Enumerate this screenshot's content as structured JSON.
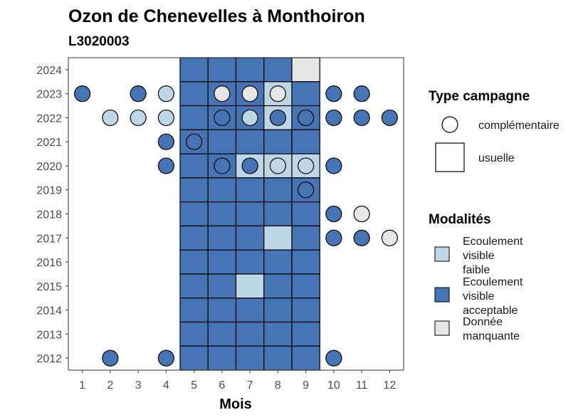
{
  "chart_data": {
    "type": "heatmap",
    "title": "Ozon de Chenevelles à Monthoiron",
    "subtitle": "L3020003",
    "xlabel": "Mois",
    "ylabel": "",
    "x_ticks": [
      1,
      2,
      3,
      4,
      5,
      6,
      7,
      8,
      9,
      10,
      11,
      12
    ],
    "y_ticks": [
      2012,
      2013,
      2014,
      2015,
      2016,
      2017,
      2018,
      2019,
      2020,
      2021,
      2022,
      2023,
      2024
    ],
    "xlim": [
      0.5,
      12.5
    ],
    "ylim": [
      2011.5,
      2024.5
    ],
    "colors": {
      "faible": "#bdd7e7",
      "acceptable": "#4575b4",
      "manquante": "#e6e6e6"
    },
    "legend_type": {
      "title": "Type campagne",
      "items": [
        {
          "label": "complémentaire",
          "shape": "circle"
        },
        {
          "label": "usuelle",
          "shape": "square"
        }
      ]
    },
    "legend_modalites": {
      "title": "Modalités",
      "items": [
        {
          "key": "faible",
          "label": "Ecoulement visible faible"
        },
        {
          "key": "acceptable",
          "label": "Ecoulement visible acceptable"
        },
        {
          "key": "manquante",
          "label": "Donnée manquante"
        }
      ]
    },
    "usuelle": [
      {
        "year": 2024,
        "month": 5,
        "v": "acceptable"
      },
      {
        "year": 2024,
        "month": 6,
        "v": "acceptable"
      },
      {
        "year": 2024,
        "month": 7,
        "v": "acceptable"
      },
      {
        "year": 2024,
        "month": 8,
        "v": "acceptable"
      },
      {
        "year": 2024,
        "month": 9,
        "v": "manquante"
      },
      {
        "year": 2023,
        "month": 5,
        "v": "acceptable"
      },
      {
        "year": 2023,
        "month": 6,
        "v": "acceptable"
      },
      {
        "year": 2023,
        "month": 7,
        "v": "acceptable"
      },
      {
        "year": 2023,
        "month": 8,
        "v": "faible"
      },
      {
        "year": 2023,
        "month": 9,
        "v": "acceptable"
      },
      {
        "year": 2022,
        "month": 5,
        "v": "acceptable"
      },
      {
        "year": 2022,
        "month": 6,
        "v": "acceptable"
      },
      {
        "year": 2022,
        "month": 7,
        "v": "acceptable"
      },
      {
        "year": 2022,
        "month": 8,
        "v": "faible"
      },
      {
        "year": 2022,
        "month": 9,
        "v": "acceptable"
      },
      {
        "year": 2021,
        "month": 5,
        "v": "acceptable"
      },
      {
        "year": 2021,
        "month": 6,
        "v": "acceptable"
      },
      {
        "year": 2021,
        "month": 7,
        "v": "acceptable"
      },
      {
        "year": 2021,
        "month": 8,
        "v": "acceptable"
      },
      {
        "year": 2021,
        "month": 9,
        "v": "acceptable"
      },
      {
        "year": 2020,
        "month": 5,
        "v": "acceptable"
      },
      {
        "year": 2020,
        "month": 6,
        "v": "acceptable"
      },
      {
        "year": 2020,
        "month": 7,
        "v": "faible"
      },
      {
        "year": 2020,
        "month": 8,
        "v": "faible"
      },
      {
        "year": 2020,
        "month": 9,
        "v": "faible"
      },
      {
        "year": 2019,
        "month": 5,
        "v": "acceptable"
      },
      {
        "year": 2019,
        "month": 6,
        "v": "acceptable"
      },
      {
        "year": 2019,
        "month": 7,
        "v": "acceptable"
      },
      {
        "year": 2019,
        "month": 8,
        "v": "acceptable"
      },
      {
        "year": 2019,
        "month": 9,
        "v": "acceptable"
      },
      {
        "year": 2018,
        "month": 5,
        "v": "acceptable"
      },
      {
        "year": 2018,
        "month": 6,
        "v": "acceptable"
      },
      {
        "year": 2018,
        "month": 7,
        "v": "acceptable"
      },
      {
        "year": 2018,
        "month": 8,
        "v": "acceptable"
      },
      {
        "year": 2018,
        "month": 9,
        "v": "acceptable"
      },
      {
        "year": 2017,
        "month": 5,
        "v": "acceptable"
      },
      {
        "year": 2017,
        "month": 6,
        "v": "acceptable"
      },
      {
        "year": 2017,
        "month": 7,
        "v": "acceptable"
      },
      {
        "year": 2017,
        "month": 8,
        "v": "faible"
      },
      {
        "year": 2017,
        "month": 9,
        "v": "acceptable"
      },
      {
        "year": 2016,
        "month": 5,
        "v": "acceptable"
      },
      {
        "year": 2016,
        "month": 6,
        "v": "acceptable"
      },
      {
        "year": 2016,
        "month": 7,
        "v": "acceptable"
      },
      {
        "year": 2016,
        "month": 8,
        "v": "acceptable"
      },
      {
        "year": 2016,
        "month": 9,
        "v": "acceptable"
      },
      {
        "year": 2015,
        "month": 5,
        "v": "acceptable"
      },
      {
        "year": 2015,
        "month": 6,
        "v": "acceptable"
      },
      {
        "year": 2015,
        "month": 7,
        "v": "faible"
      },
      {
        "year": 2015,
        "month": 8,
        "v": "acceptable"
      },
      {
        "year": 2015,
        "month": 9,
        "v": "acceptable"
      },
      {
        "year": 2014,
        "month": 5,
        "v": "acceptable"
      },
      {
        "year": 2014,
        "month": 6,
        "v": "acceptable"
      },
      {
        "year": 2014,
        "month": 7,
        "v": "acceptable"
      },
      {
        "year": 2014,
        "month": 8,
        "v": "acceptable"
      },
      {
        "year": 2014,
        "month": 9,
        "v": "acceptable"
      },
      {
        "year": 2013,
        "month": 5,
        "v": "acceptable"
      },
      {
        "year": 2013,
        "month": 6,
        "v": "acceptable"
      },
      {
        "year": 2013,
        "month": 7,
        "v": "acceptable"
      },
      {
        "year": 2013,
        "month": 8,
        "v": "acceptable"
      },
      {
        "year": 2013,
        "month": 9,
        "v": "acceptable"
      },
      {
        "year": 2012,
        "month": 5,
        "v": "acceptable"
      },
      {
        "year": 2012,
        "month": 6,
        "v": "acceptable"
      },
      {
        "year": 2012,
        "month": 7,
        "v": "acceptable"
      },
      {
        "year": 2012,
        "month": 8,
        "v": "acceptable"
      },
      {
        "year": 2012,
        "month": 9,
        "v": "acceptable"
      }
    ],
    "complementaire": [
      {
        "year": 2023,
        "month": 1,
        "v": "acceptable"
      },
      {
        "year": 2023,
        "month": 3,
        "v": "acceptable"
      },
      {
        "year": 2023,
        "month": 4,
        "v": "faible"
      },
      {
        "year": 2023,
        "month": 6,
        "v": "manquante"
      },
      {
        "year": 2023,
        "month": 7,
        "v": "manquante"
      },
      {
        "year": 2023,
        "month": 8,
        "v": "manquante"
      },
      {
        "year": 2023,
        "month": 10,
        "v": "acceptable"
      },
      {
        "year": 2023,
        "month": 11,
        "v": "acceptable"
      },
      {
        "year": 2022,
        "month": 2,
        "v": "faible"
      },
      {
        "year": 2022,
        "month": 3,
        "v": "faible"
      },
      {
        "year": 2022,
        "month": 4,
        "v": "faible"
      },
      {
        "year": 2022,
        "month": 6,
        "v": "acceptable"
      },
      {
        "year": 2022,
        "month": 7,
        "v": "faible"
      },
      {
        "year": 2022,
        "month": 8,
        "v": "acceptable"
      },
      {
        "year": 2022,
        "month": 9,
        "v": "acceptable"
      },
      {
        "year": 2022,
        "month": 10,
        "v": "acceptable"
      },
      {
        "year": 2022,
        "month": 11,
        "v": "acceptable"
      },
      {
        "year": 2022,
        "month": 12,
        "v": "acceptable"
      },
      {
        "year": 2021,
        "month": 4,
        "v": "acceptable"
      },
      {
        "year": 2021,
        "month": 5,
        "v": "acceptable"
      },
      {
        "year": 2020,
        "month": 4,
        "v": "acceptable"
      },
      {
        "year": 2020,
        "month": 6,
        "v": "acceptable"
      },
      {
        "year": 2020,
        "month": 7,
        "v": "acceptable"
      },
      {
        "year": 2020,
        "month": 8,
        "v": "faible"
      },
      {
        "year": 2020,
        "month": 9,
        "v": "faible"
      },
      {
        "year": 2020,
        "month": 10,
        "v": "acceptable"
      },
      {
        "year": 2019,
        "month": 9,
        "v": "acceptable"
      },
      {
        "year": 2018,
        "month": 10,
        "v": "acceptable"
      },
      {
        "year": 2018,
        "month": 11,
        "v": "manquante"
      },
      {
        "year": 2017,
        "month": 10,
        "v": "acceptable"
      },
      {
        "year": 2017,
        "month": 11,
        "v": "acceptable"
      },
      {
        "year": 2017,
        "month": 12,
        "v": "manquante"
      },
      {
        "year": 2012,
        "month": 2,
        "v": "acceptable"
      },
      {
        "year": 2012,
        "month": 4,
        "v": "acceptable"
      },
      {
        "year": 2012,
        "month": 10,
        "v": "acceptable"
      }
    ]
  }
}
